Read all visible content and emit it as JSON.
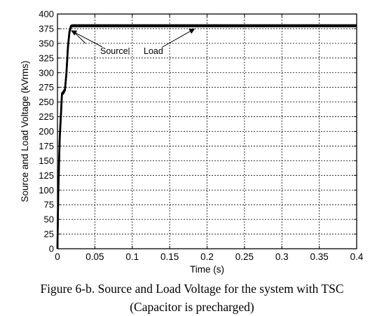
{
  "chart_data": {
    "type": "line",
    "xlabel": "Time (s)",
    "ylabel": "Source and Load Voltage (kVrms)",
    "xlim": [
      0,
      0.4
    ],
    "ylim": [
      0,
      400
    ],
    "xticks": [
      0,
      0.05,
      0.1,
      0.15,
      0.2,
      0.25,
      0.3,
      0.35,
      0.4
    ],
    "xtick_labels": [
      "0",
      "0.05",
      "0.1",
      "0.15",
      "0.2",
      "0.25",
      "0.3",
      "0.35",
      "0.4"
    ],
    "yticks": [
      0,
      25,
      50,
      75,
      100,
      125,
      150,
      175,
      200,
      225,
      250,
      275,
      300,
      325,
      350,
      375,
      400
    ],
    "ytick_labels": [
      "0",
      "25",
      "50",
      "75",
      "100",
      "125",
      "150",
      "175",
      "200",
      "225",
      "250",
      "275",
      "300",
      "325",
      "350",
      "375",
      "400"
    ],
    "grid": true,
    "series": [
      {
        "name": "Source",
        "color": "#000000",
        "x": [
          0,
          0.001,
          0.003,
          0.005,
          0.006,
          0.008,
          0.01,
          0.012,
          0.014,
          0.016,
          0.018,
          0.02,
          0.03,
          0.1,
          0.2,
          0.3,
          0.4
        ],
        "y": [
          0,
          95,
          190,
          240,
          265,
          268,
          272,
          300,
          345,
          370,
          380,
          381,
          381,
          381,
          381,
          381,
          381
        ]
      },
      {
        "name": "Load",
        "color": "#000000",
        "x": [
          0,
          0.001,
          0.003,
          0.005,
          0.006,
          0.008,
          0.01,
          0.012,
          0.014,
          0.016,
          0.018,
          0.02,
          0.03,
          0.1,
          0.2,
          0.3,
          0.4
        ],
        "y": [
          0,
          90,
          185,
          235,
          262,
          265,
          270,
          298,
          342,
          368,
          378,
          379,
          379,
          379,
          379,
          379,
          379
        ]
      }
    ],
    "annotations": [
      {
        "text": "Source",
        "points_to": {
          "x": 0.016,
          "y": 375
        }
      },
      {
        "text": "Load",
        "points_to": {
          "x": 0.183,
          "y": 377
        }
      }
    ]
  },
  "caption": {
    "line1": "Figure 6-b. Source and Load Voltage for the system with TSC",
    "line2": "(Capacitor is precharged)"
  }
}
